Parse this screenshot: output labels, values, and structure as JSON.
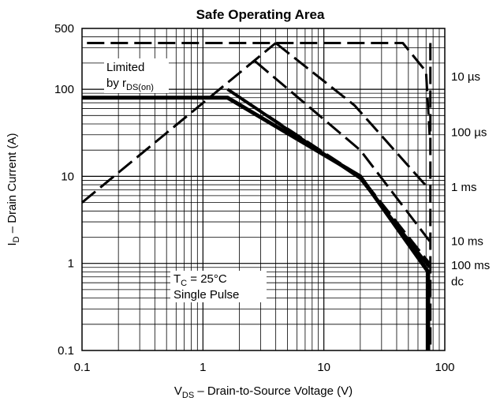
{
  "chart_data": {
    "type": "line",
    "title": "Safe Operating Area",
    "xlabel": {
      "main": "V",
      "sub": "DS",
      "rest": " – Drain-to-Source Voltage (V)"
    },
    "ylabel": {
      "main": "I",
      "sub": "D",
      "rest": " – Drain Current (A)"
    },
    "x_scale": "log",
    "y_scale": "log",
    "xlim": [
      0.1,
      100
    ],
    "ylim": [
      0.1,
      500
    ],
    "x_ticks": [
      0.1,
      1,
      10,
      100
    ],
    "x_tick_labels": [
      "0.1",
      "1",
      "10",
      "100"
    ],
    "y_ticks": [
      0.1,
      1,
      10,
      100,
      500
    ],
    "y_tick_labels": [
      "0.1",
      "1",
      "10",
      "100",
      "500"
    ],
    "grid": true,
    "series": [
      {
        "name": "Limited by rDS(on)",
        "style": "dashed",
        "width": 3,
        "x": [
          0.1,
          4
        ],
        "y": [
          5,
          340
        ]
      },
      {
        "name": "10 µs",
        "style": "dashed",
        "width": 3,
        "x": [
          0.11,
          45,
          70,
          75
        ],
        "y": [
          340,
          340,
          160,
          30
        ]
      },
      {
        "name": "100 µs",
        "style": "dashed",
        "width": 3,
        "x": [
          4,
          18,
          75
        ],
        "y": [
          340,
          65,
          7
        ]
      },
      {
        "name": "1 ms",
        "style": "dashed",
        "width": 3,
        "x": [
          2.7,
          20,
          75
        ],
        "y": [
          210,
          20,
          1.8
        ]
      },
      {
        "name": "10 ms",
        "style": "dashed",
        "width": 3,
        "x": [
          1.6,
          20,
          75
        ],
        "y": [
          100,
          10,
          1
        ]
      },
      {
        "name": "100 ms",
        "style": "solid",
        "width": 4,
        "x": [
          1.6,
          20,
          75
        ],
        "y": [
          100,
          9.5,
          0.9
        ]
      },
      {
        "name": "dc",
        "style": "solid",
        "width": 5,
        "x": [
          0.1,
          1.6,
          20,
          73,
          73
        ],
        "y": [
          80,
          80,
          10,
          0.8,
          0.1
        ]
      },
      {
        "name": "limit",
        "style": "dashed",
        "width": 3,
        "x": [
          76,
          76
        ],
        "y": [
          340,
          0.1
        ]
      }
    ],
    "curve_labels": [
      {
        "text": "10 µs",
        "y": 140
      },
      {
        "text": "100 µs",
        "y": 32
      },
      {
        "text": "1 ms",
        "y": 7.5
      },
      {
        "text": "10 ms",
        "y": 1.8
      },
      {
        "text": "100 ms",
        "y": 0.95
      },
      {
        "text": "dc",
        "y": 0.62
      }
    ],
    "annotations": {
      "limited_line1": "Limited",
      "limited_line2_prefix": "by r",
      "limited_line2_sub": "DS(on)",
      "tc_prefix": "T",
      "tc_sub": "C",
      "tc_rest": " = 25°C",
      "pulse": "Single Pulse"
    }
  }
}
